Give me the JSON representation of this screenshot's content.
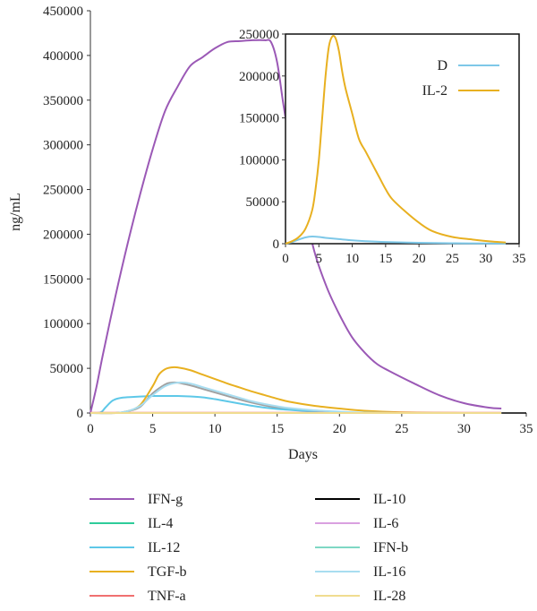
{
  "chart_data": [
    {
      "type": "line",
      "title": "",
      "xlabel": "Days",
      "ylabel": "ng/mL",
      "xlim": [
        0,
        35
      ],
      "ylim": [
        0,
        450000
      ],
      "xticks": [
        "0",
        "5",
        "10",
        "15",
        "20",
        "25",
        "30",
        "35"
      ],
      "yticks": [
        "0",
        "50000",
        "100000",
        "150000",
        "200000",
        "250000",
        "300000",
        "350000",
        "400000",
        "450000"
      ],
      "grid": false,
      "legend_position": "bottom",
      "series": [
        {
          "name": "IFN-g",
          "color": "#9b59b6",
          "x": [
            0,
            0.5,
            1,
            2,
            3,
            4,
            5,
            6,
            7,
            8,
            9,
            10,
            11,
            12,
            13,
            14,
            14.5,
            15,
            15.5,
            16,
            17,
            18,
            19,
            20,
            21,
            22,
            23,
            24,
            26,
            28,
            30,
            32,
            33
          ],
          "y": [
            0,
            30000,
            65000,
            130000,
            190000,
            245000,
            295000,
            338000,
            365000,
            388000,
            398000,
            408000,
            415000,
            416000,
            417000,
            417000,
            415000,
            392000,
            345000,
            305000,
            240000,
            180000,
            140000,
            110000,
            85000,
            68000,
            55000,
            47000,
            33000,
            20000,
            11000,
            6000,
            5000
          ]
        },
        {
          "name": "IL-4",
          "color": "#2ecc9a",
          "x": [
            0,
            10,
            20,
            33
          ],
          "y": [
            0,
            0,
            0,
            0
          ]
        },
        {
          "name": "IL-12",
          "color": "#5ec8e8",
          "x": [
            0,
            0.8,
            1.2,
            1.8,
            2.5,
            3.5,
            5,
            6,
            7,
            8,
            9,
            10,
            11,
            12,
            13,
            14,
            15,
            16,
            17,
            18,
            20,
            22
          ],
          "y": [
            0,
            500,
            6000,
            14000,
            17000,
            18000,
            19000,
            19000,
            19000,
            18500,
            17500,
            15500,
            13000,
            10500,
            8000,
            6000,
            4500,
            3500,
            2500,
            1500,
            500,
            0
          ]
        },
        {
          "name": "TGF-b",
          "color": "#e8b020",
          "x": [
            0,
            2,
            3,
            4,
            5,
            5.5,
            6,
            6.5,
            7,
            8,
            9,
            10,
            11,
            12,
            13,
            14,
            15,
            16,
            18,
            20,
            22,
            25,
            30,
            33
          ],
          "y": [
            0,
            0,
            2000,
            9000,
            30000,
            43000,
            49000,
            51000,
            51000,
            48000,
            43000,
            38000,
            33000,
            28500,
            24000,
            20000,
            16000,
            12500,
            8000,
            5000,
            2500,
            800,
            0,
            0
          ]
        },
        {
          "name": "TNF-a",
          "color": "#f07070",
          "x": [
            0,
            10,
            20,
            33
          ],
          "y": [
            300,
            300,
            300,
            300
          ]
        },
        {
          "name": "IL-10",
          "color": "#000000",
          "x": [
            0,
            10,
            20,
            30,
            32.5,
            33,
            35
          ],
          "y": [
            0,
            0,
            0,
            0,
            0,
            0,
            0
          ]
        },
        {
          "name": "IL-6",
          "color": "#d9a0e0",
          "x": [
            0,
            10,
            20,
            33
          ],
          "y": [
            0,
            0,
            0,
            0
          ]
        },
        {
          "name": "IFN-b",
          "color": "#7fd8c4",
          "x": [
            0,
            10,
            20,
            33
          ],
          "y": [
            0,
            0,
            0,
            0
          ]
        },
        {
          "name": "IL-16",
          "color": "#a8ddf0",
          "x": [
            0,
            2,
            3,
            4,
            5,
            6,
            7,
            8,
            9,
            10,
            11,
            12,
            13,
            14,
            15,
            16,
            18,
            20,
            22,
            25
          ],
          "y": [
            0,
            0,
            2000,
            8000,
            20000,
            30000,
            34000,
            33000,
            29000,
            25000,
            21000,
            17000,
            13000,
            10000,
            7500,
            5500,
            3000,
            1500,
            500,
            0
          ]
        },
        {
          "name": "IL-28",
          "color": "#f0dc90",
          "x": [
            0,
            10,
            20,
            33
          ],
          "y": [
            0,
            0,
            0,
            0
          ]
        }
      ],
      "extra_series": [
        {
          "color": "#a0a0a0",
          "x": [
            0,
            2,
            3,
            4,
            5,
            6,
            6.5,
            7,
            8,
            9,
            10,
            11,
            12,
            13,
            14,
            15,
            16,
            18,
            20,
            22,
            25
          ],
          "y": [
            0,
            0,
            2000,
            7000,
            22000,
            32000,
            34000,
            34000,
            31000,
            27000,
            23000,
            19000,
            15000,
            11500,
            8500,
            6000,
            4000,
            2000,
            800,
            200,
            0
          ]
        }
      ]
    },
    {
      "type": "line",
      "title": "",
      "xlim": [
        0,
        35
      ],
      "ylim": [
        0,
        250000
      ],
      "xticks": [
        "0",
        "5",
        "10",
        "15",
        "20",
        "25",
        "30",
        "35"
      ],
      "yticks": [
        "0",
        "50000",
        "100000",
        "150000",
        "200000",
        "250000"
      ],
      "grid": false,
      "legend_position": "top-right",
      "series": [
        {
          "name": "D",
          "color": "#7ec8e8",
          "x": [
            0,
            1,
            2,
            3,
            4,
            5,
            6,
            8,
            10,
            12,
            15,
            20,
            25,
            30,
            33
          ],
          "y": [
            0,
            2000,
            5000,
            7500,
            8500,
            8000,
            7000,
            5500,
            4000,
            3000,
            2000,
            1000,
            500,
            200,
            100
          ]
        },
        {
          "name": "IL-2",
          "color": "#e8b020",
          "x": [
            0,
            1,
            2,
            3,
            4,
            4.5,
            5,
            5.5,
            6,
            6.5,
            7,
            7.5,
            8,
            8.5,
            9,
            10,
            11,
            12,
            13,
            14,
            15,
            16,
            18,
            20,
            22,
            25,
            28,
            31,
            33
          ],
          "y": [
            0,
            3000,
            8000,
            18000,
            40000,
            65000,
            100000,
            150000,
            200000,
            235000,
            247000,
            245000,
            230000,
            205000,
            185000,
            155000,
            125000,
            110000,
            95000,
            80000,
            65000,
            53000,
            38000,
            25000,
            15000,
            8000,
            5000,
            2500,
            1500
          ]
        }
      ]
    }
  ]
}
